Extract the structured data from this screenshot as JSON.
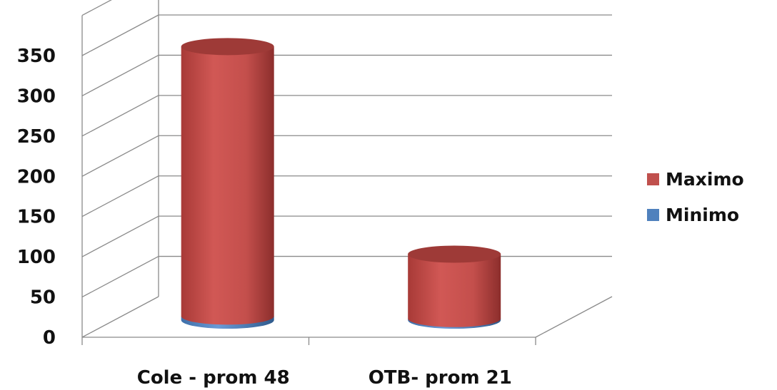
{
  "chart_data": {
    "type": "bar",
    "style": "3d-cylinder-stacked",
    "categories": [
      "Cole - prom 48",
      "OTB- prom 21"
    ],
    "series": [
      {
        "name": "Minimo",
        "values": [
          5,
          2
        ],
        "color": "#4f81bd"
      },
      {
        "name": "Maximo",
        "values": [
          335,
          80
        ],
        "color": "#c0504d"
      }
    ],
    "yticks": [
      "0",
      "50",
      "100",
      "150",
      "200",
      "250",
      "300",
      "350"
    ],
    "ylim": [
      0,
      350
    ],
    "grid": true,
    "legend": "right",
    "legend_order": [
      "Maximo",
      "Minimo"
    ]
  }
}
